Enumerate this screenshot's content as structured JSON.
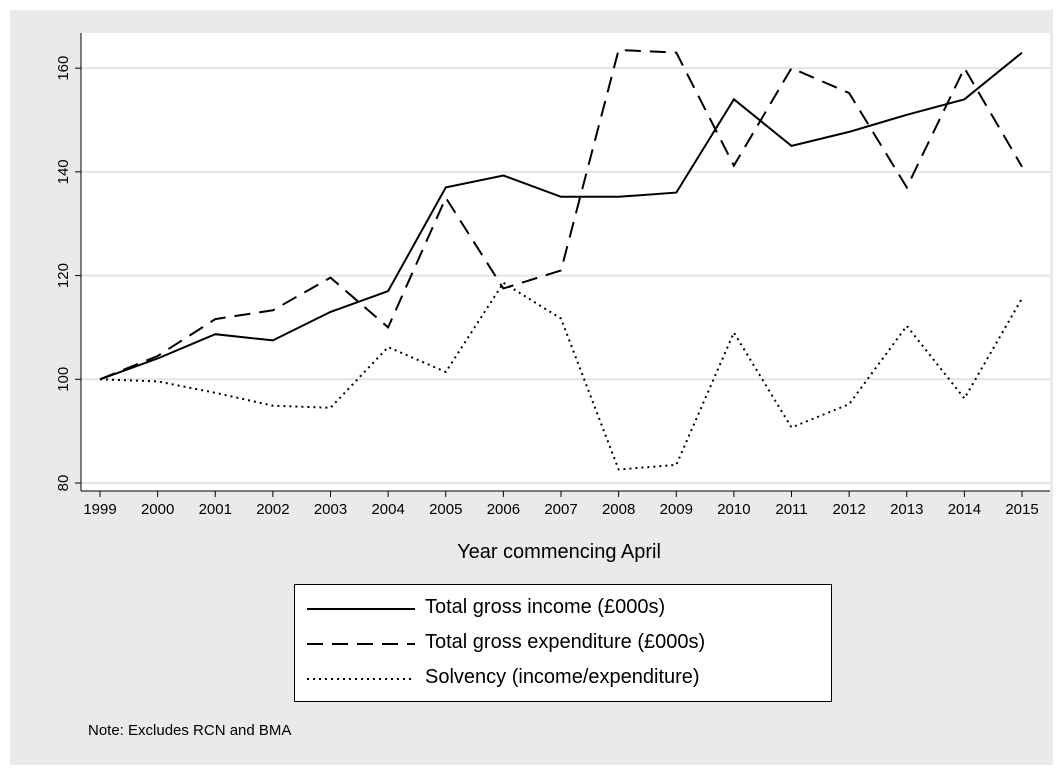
{
  "chart_data": {
    "type": "line",
    "title": "",
    "xlabel": "Year commencing April",
    "ylabel": "",
    "x": [
      "1999",
      "2000",
      "2001",
      "2002",
      "2003",
      "2004",
      "2005",
      "2006",
      "2007",
      "2008",
      "2009",
      "2010",
      "2011",
      "2012",
      "2013",
      "2014",
      "2015"
    ],
    "ylim": [
      77,
      166
    ],
    "yticks": [
      80,
      100,
      120,
      140,
      160
    ],
    "grid": "horizontal",
    "legend_position": "bottom",
    "series": [
      {
        "name": "Total gross income (£000s)",
        "dash": "solid",
        "values": [
          100,
          104,
          108.7,
          107.5,
          113,
          117,
          137,
          139.3,
          135.2,
          135.2,
          136,
          154,
          145,
          147.7,
          151,
          154,
          163
        ]
      },
      {
        "name": "Total gross expenditure (£000s)",
        "dash": "dashed",
        "values": [
          100,
          104.5,
          111.6,
          113.3,
          119.6,
          110,
          135,
          117.5,
          121,
          163.5,
          163,
          141.2,
          160,
          155.2,
          137,
          160,
          141
        ]
      },
      {
        "name": "Solvency (income/expenditure)",
        "dash": "dotted",
        "values": [
          100,
          99.6,
          97.4,
          94.9,
          94.5,
          106.2,
          101.4,
          118.6,
          111.7,
          82.6,
          83.5,
          109,
          90.7,
          95.2,
          110.3,
          96.3,
          115.6
        ]
      }
    ],
    "note": "Note: Excludes RCN and BMA"
  },
  "colors": {
    "plot_background": "#ffffff",
    "figure_background": "#eaeaea",
    "grid": "#e4e4e4",
    "line": "#000000"
  }
}
